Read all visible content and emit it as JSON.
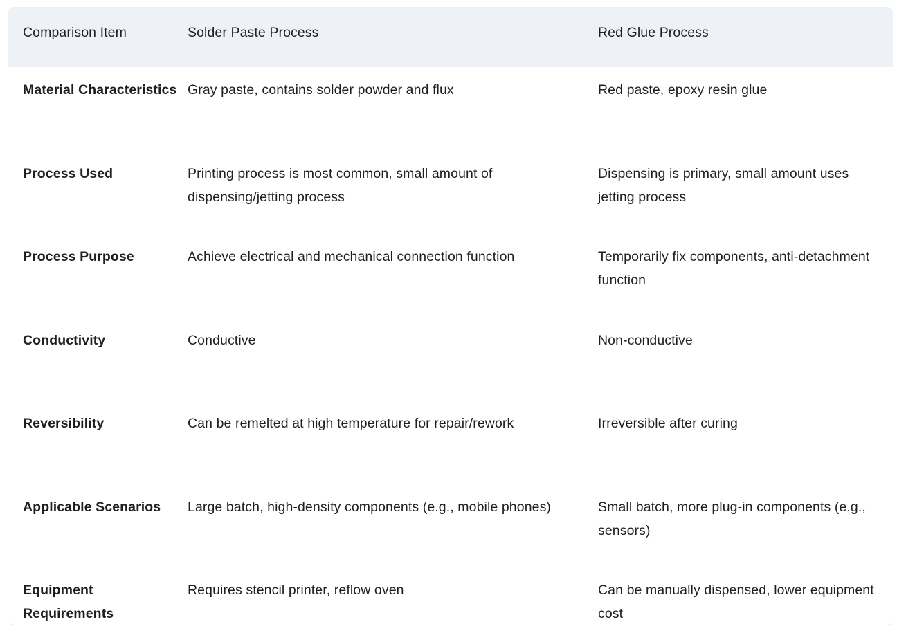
{
  "table": {
    "headers": [
      "Comparison Item",
      "Solder Paste Process",
      "Red Glue Process"
    ],
    "rows": [
      {
        "item": "Material Characteristics",
        "solder": "Gray paste, contains solder powder and flux",
        "glue": "Red paste, epoxy resin glue"
      },
      {
        "item": "Process Used",
        "solder": "Printing process is most common, small amount of dispensing/jetting process",
        "glue": "Dispensing is primary, small amount uses jetting process"
      },
      {
        "item": "Process Purpose",
        "solder": "Achieve electrical and mechanical connection function",
        "glue": "Temporarily fix components, anti-detachment function"
      },
      {
        "item": "Conductivity",
        "solder": "Conductive",
        "glue": "Non-conductive"
      },
      {
        "item": "Reversibility",
        "solder": "Can be remelted at high temperature for repair/rework",
        "glue": "Irreversible after curing"
      },
      {
        "item": "Applicable Scenarios",
        "solder": "Large batch, high-density components (e.g., mobile phones)",
        "glue": "Small batch, more plug-in components (e.g., sensors)"
      },
      {
        "item": "Equipment Requirements",
        "solder": "Requires stencil printer, reflow oven",
        "glue": "Can be manually dispensed, lower equipment cost"
      }
    ]
  }
}
